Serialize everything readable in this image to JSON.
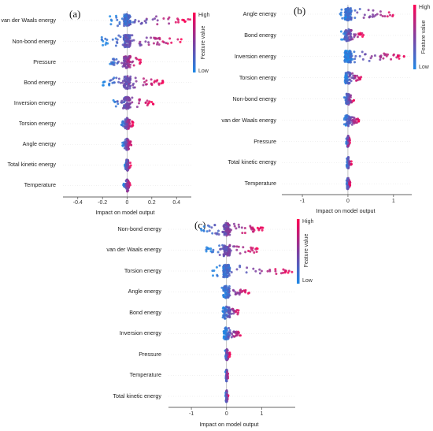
{
  "colors": {
    "low": "#1e88e5",
    "high": "#ff0052"
  },
  "chart_data": [
    {
      "type": "scatter",
      "panel": "(a)",
      "features": [
        "van der Waals energy",
        "Non-bond energy",
        "Pressure",
        "Bond energy",
        "Inversion energy",
        "Torsion energy",
        "Angle energy",
        "Total kinetic energy",
        "Temperature"
      ],
      "xticks": [
        -0.4,
        -0.2,
        0,
        0.2,
        0.4
      ],
      "xlim": [
        -0.52,
        0.52
      ],
      "xlabel": "Impact on model output",
      "colorbar": {
        "title": "Feature value",
        "high": "High",
        "low": "Low"
      },
      "spread": [
        [
          -0.14,
          0.52
        ],
        [
          -0.22,
          0.46
        ],
        [
          -0.16,
          0.12
        ],
        [
          -0.2,
          0.3
        ],
        [
          -0.16,
          0.22
        ],
        [
          -0.05,
          0.05
        ],
        [
          -0.04,
          0.04
        ],
        [
          -0.02,
          0.03
        ],
        [
          -0.03,
          0.03
        ]
      ]
    },
    {
      "type": "scatter",
      "panel": "(b)",
      "features": [
        "Angle energy",
        "Bond energy",
        "Inversion energy",
        "Torsion energy",
        "Non-bond energy",
        "van der Waals energy",
        "Pressure",
        "Total kinetic energy",
        "Temperature"
      ],
      "xticks": [
        -1,
        0,
        1
      ],
      "xlim": [
        -1.45,
        1.4
      ],
      "xlabel": "Impact on model output",
      "colorbar": {
        "title": "Feature value",
        "high": "High",
        "low": "Low"
      },
      "spread": [
        [
          -0.18,
          1.1
        ],
        [
          -0.18,
          0.35
        ],
        [
          -0.1,
          1.25
        ],
        [
          -0.08,
          0.3
        ],
        [
          -0.08,
          0.15
        ],
        [
          -0.08,
          0.25
        ],
        [
          -0.04,
          0.05
        ],
        [
          -0.03,
          0.08
        ],
        [
          -0.03,
          0.05
        ]
      ]
    },
    {
      "type": "scatter",
      "panel": "(c)",
      "features": [
        "Non-bond energy",
        "van der Waals energy",
        "Torsion energy",
        "Angle energy",
        "Bond energy",
        "Inversion energy",
        "Pressure",
        "Temperature",
        "Total kinetic energy"
      ],
      "xticks": [
        -1,
        0,
        1
      ],
      "xlim": [
        -1.65,
        1.95
      ],
      "xlabel": "Impact on model output",
      "colorbar": {
        "title": "Feature value",
        "high": "High",
        "low": "Low"
      },
      "spread": [
        [
          -0.85,
          1.05
        ],
        [
          -0.6,
          0.95
        ],
        [
          -0.4,
          1.9
        ],
        [
          -0.15,
          0.65
        ],
        [
          -0.12,
          0.42
        ],
        [
          -0.08,
          0.42
        ],
        [
          -0.06,
          0.1
        ],
        [
          -0.03,
          0.05
        ],
        [
          -0.03,
          0.05
        ]
      ]
    }
  ]
}
